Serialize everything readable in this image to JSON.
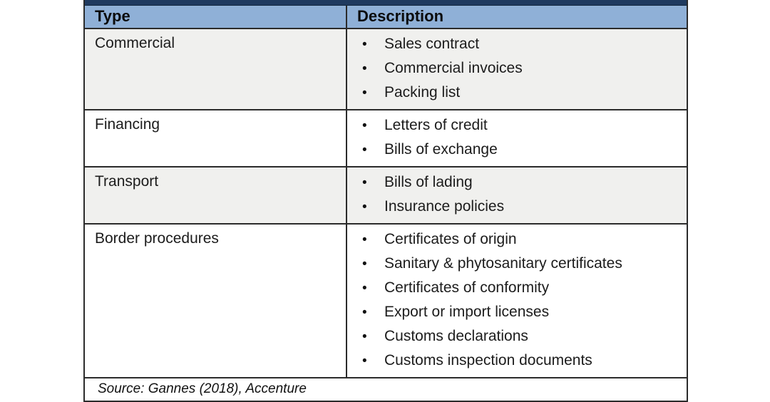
{
  "table": {
    "columns": [
      {
        "label": "Type"
      },
      {
        "label": "Description"
      }
    ],
    "rows": [
      {
        "type": "Commercial",
        "shaded": true,
        "items": [
          "Sales contract",
          "Commercial invoices",
          "Packing list"
        ]
      },
      {
        "type": "Financing",
        "shaded": false,
        "items": [
          "Letters of credit",
          "Bills of exchange"
        ]
      },
      {
        "type": "Transport",
        "shaded": true,
        "items": [
          "Bills of lading",
          "Insurance policies"
        ]
      },
      {
        "type": "Border procedures",
        "shaded": false,
        "items": [
          "Certificates of origin",
          "Sanitary & phytosanitary certificates",
          "Certificates of conformity",
          "Export or import licenses",
          "Customs declarations",
          "Customs inspection documents"
        ]
      }
    ],
    "bullet_glyph": "•",
    "source_note": "Source: Gannes (2018), Accenture",
    "colors": {
      "header_bg": "#8fb0d7",
      "title_bar_bg": "#1f3a5f",
      "shaded_row_bg": "#f0f0ee",
      "border": "#2b2b2b"
    }
  }
}
